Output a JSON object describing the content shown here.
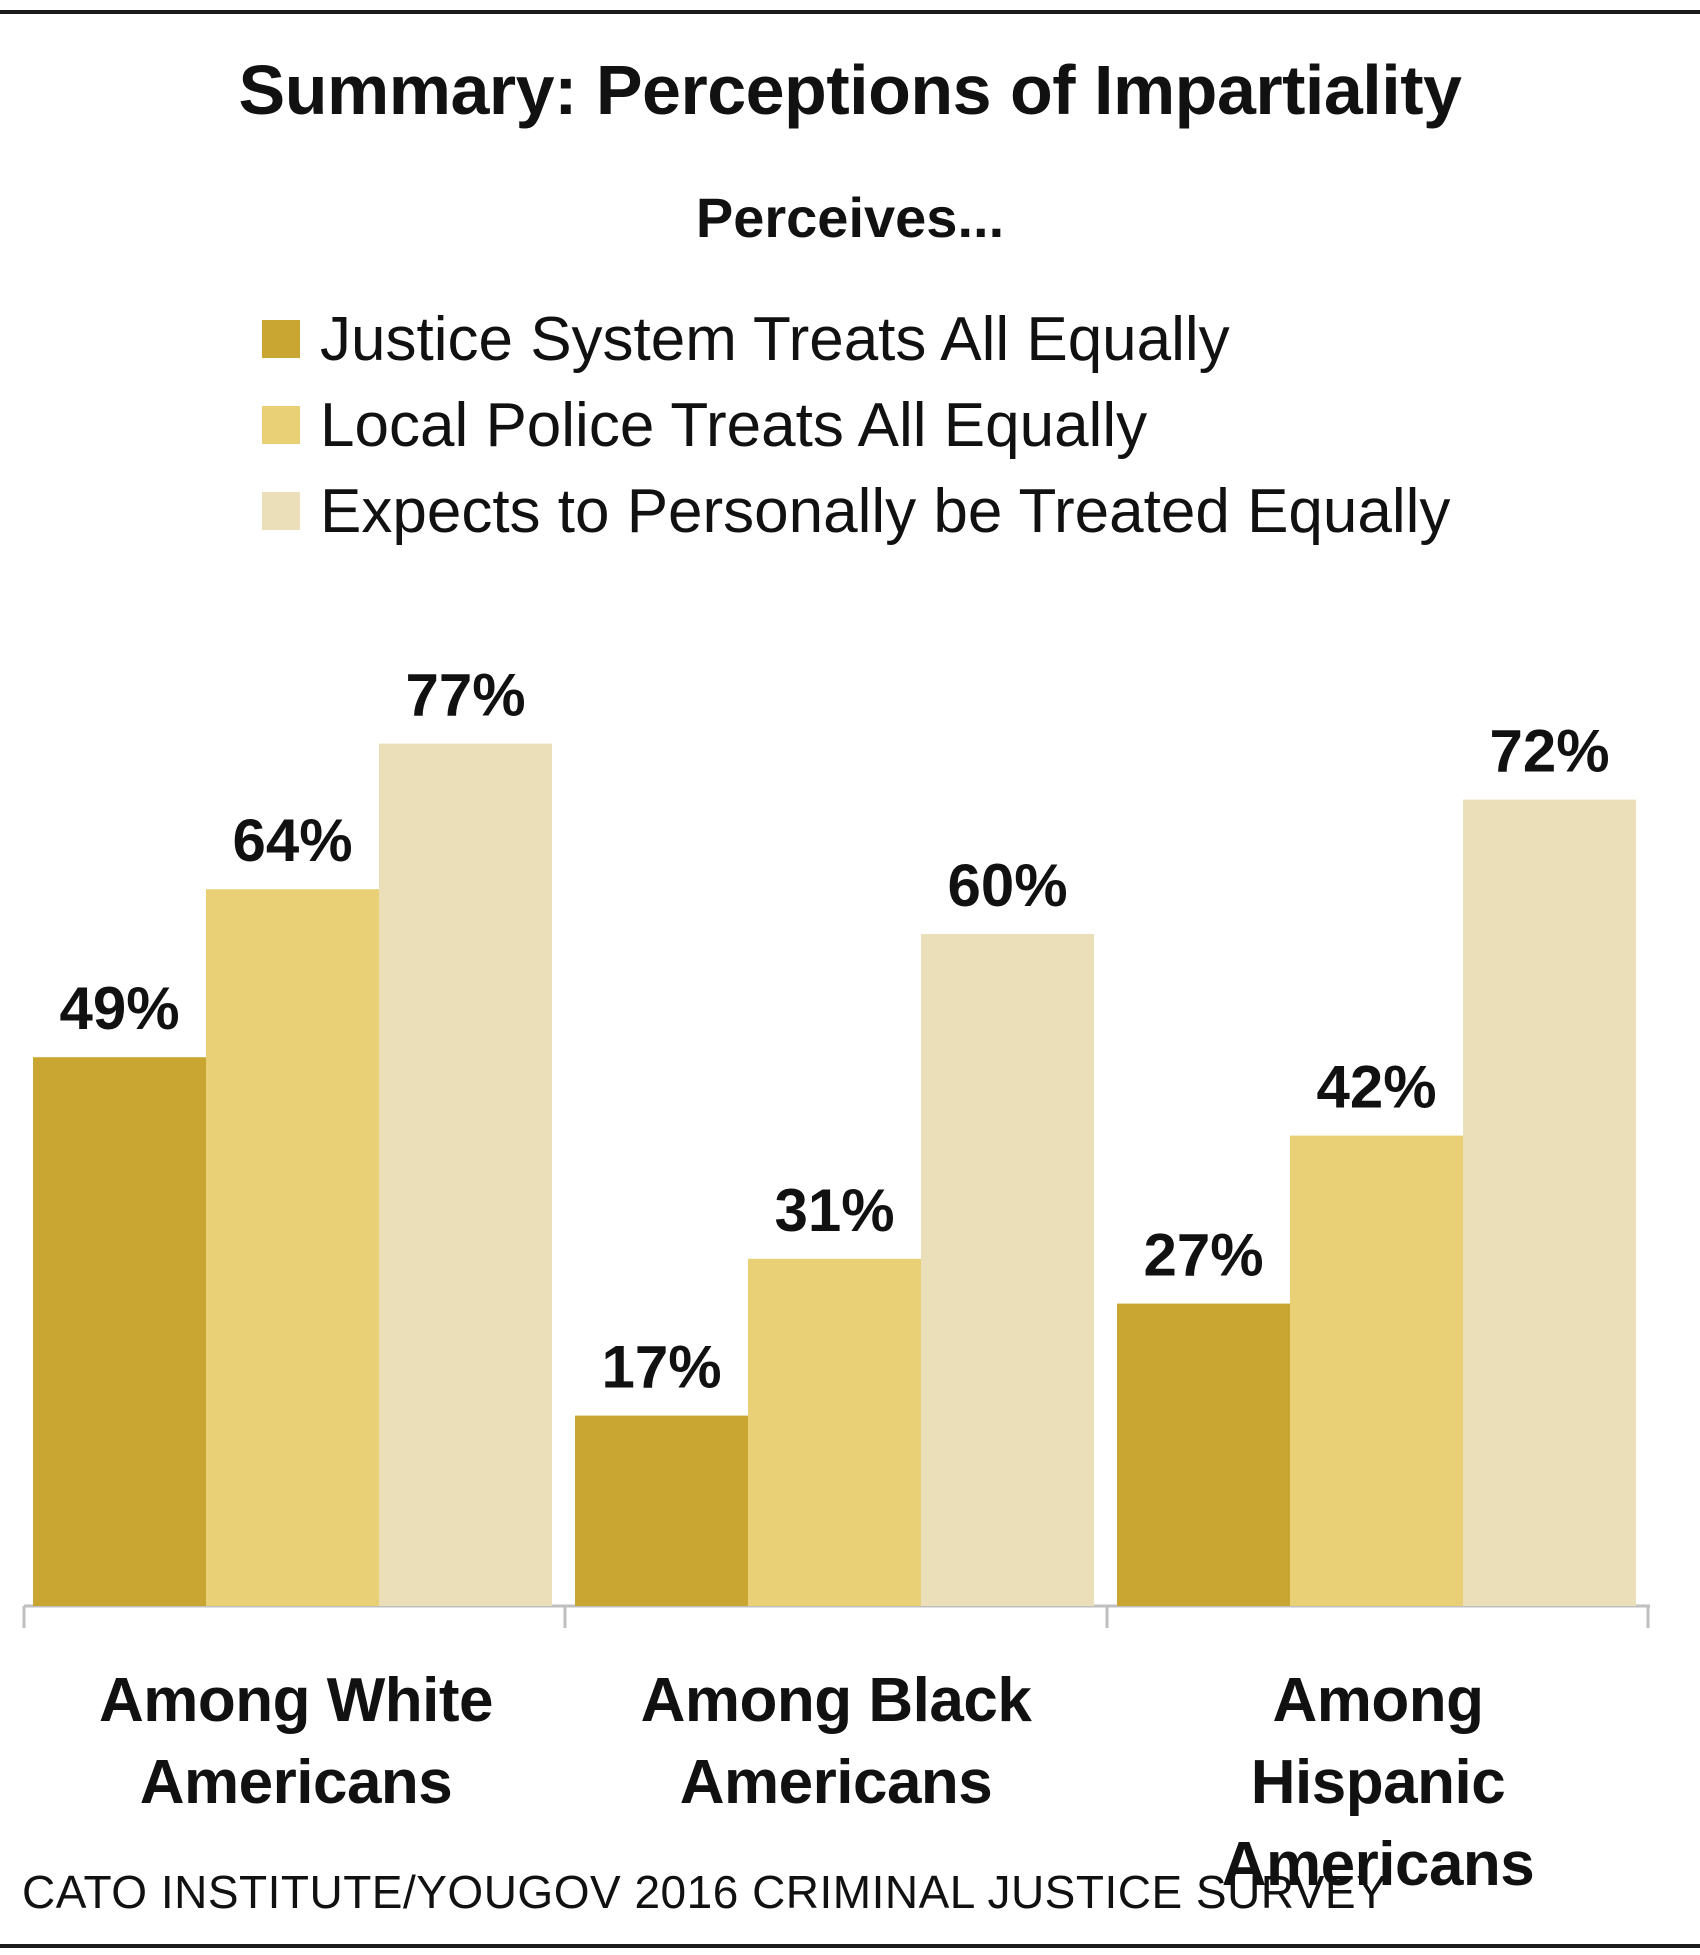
{
  "chart_data": {
    "type": "bar",
    "title": "Summary: Perceptions of Impartiality",
    "subtitle": "Perceives...",
    "categories": [
      {
        "line1": "Among White",
        "line2": "Americans"
      },
      {
        "line1": "Among Black",
        "line2": "Americans"
      },
      {
        "line1": "Among Hispanic",
        "line2": "Americans"
      }
    ],
    "series": [
      {
        "name": "Justice System Treats All Equally",
        "values": [
          49,
          17,
          27
        ],
        "labels": [
          "49%",
          "17%",
          "27%"
        ],
        "color": "#c9a632"
      },
      {
        "name": "Local Police Treats All Equally",
        "values": [
          64,
          31,
          42
        ],
        "labels": [
          "64%",
          "31%",
          "42%"
        ],
        "color": "#e9d077"
      },
      {
        "name": "Expects to Personally be Treated Equally",
        "values": [
          77,
          60,
          72
        ],
        "labels": [
          "77%",
          "60%",
          "72%"
        ],
        "color": "#ebdfba"
      }
    ],
    "ylim": [
      0,
      100
    ],
    "xlabel": "",
    "ylabel": "",
    "grid": false,
    "legend": "top"
  },
  "source": "CATO INSTITUTE/YOUGOV 2016 CRIMINAL JUSTICE SURVEY"
}
